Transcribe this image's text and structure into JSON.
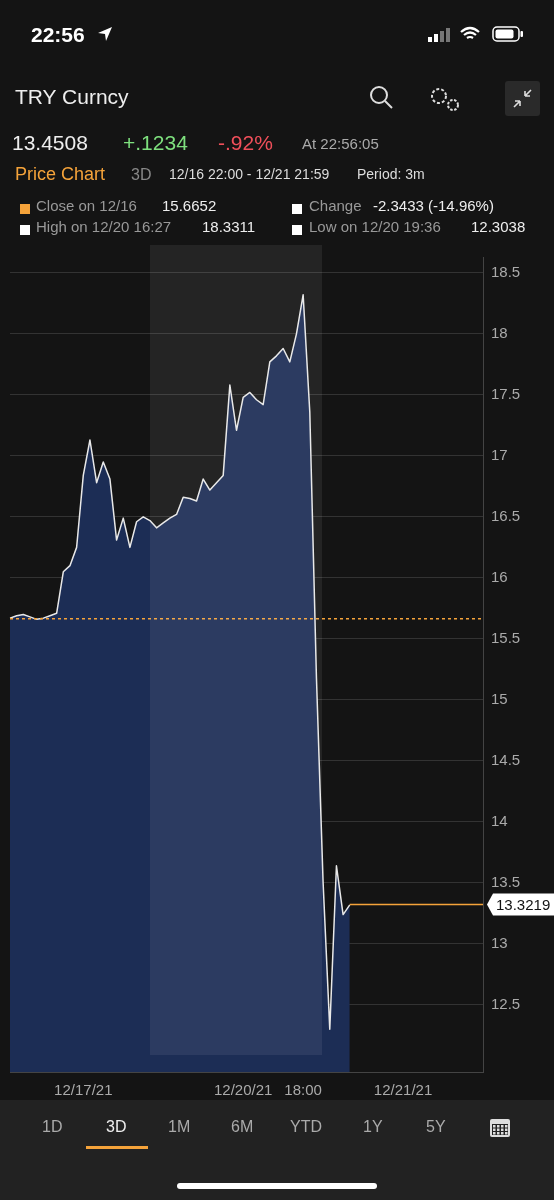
{
  "chart_data": {
    "type": "area",
    "title": "TRY Curncy",
    "annotations": [
      "22:56",
      "13.4508",
      "+.1234",
      "-.92%",
      "At 22:56:05",
      "Price Chart",
      "3D",
      "12/16 22:00 - 12/21 21:59",
      "Period: 3m",
      "Close on 12/16",
      "15.6652",
      "Change",
      "-2.3433 (-14.96%)",
      "High on 12/20 16:27",
      "18.3311",
      "Low on 12/20 19:36",
      "12.3038",
      "1D",
      "3D",
      "1M",
      "6M",
      "YTD",
      "1Y",
      "5Y"
    ],
    "categories": [
      null,
      null,
      null,
      null,
      null,
      null,
      null,
      null,
      null,
      null,
      null,
      "12/17/21",
      null,
      null,
      null,
      null,
      null,
      null,
      null,
      null,
      null,
      null,
      null,
      null,
      null,
      null,
      null,
      null,
      null,
      null,
      null,
      null,
      null,
      null,
      null,
      "12/20/21",
      null,
      null,
      null,
      null,
      null,
      null,
      null,
      null,
      "18:00",
      null,
      null,
      null,
      null,
      null,
      null,
      null,
      null,
      null,
      null,
      null,
      null,
      null,
      null,
      "12/21/21",
      null,
      null,
      null,
      null,
      null,
      null,
      null,
      null,
      null,
      null,
      null,
      null
    ],
    "series": [
      {
        "color": "#1c2d55",
        "values": [
          15.67,
          15.69,
          15.7,
          15.68,
          15.66,
          15.67,
          15.69,
          15.71,
          16.05,
          16.1,
          16.25,
          16.84,
          17.13,
          16.78,
          16.95,
          16.81,
          16.31,
          16.49,
          16.25,
          16.46,
          16.5,
          16.47,
          16.41,
          16.45,
          16.49,
          16.52,
          16.66,
          16.65,
          16.63,
          16.81,
          16.72,
          16.78,
          16.84,
          17.58,
          17.21,
          17.48,
          17.52,
          17.46,
          17.42,
          17.77,
          17.82,
          17.88,
          17.77,
          18.0,
          18.32,
          17.36,
          15.18,
          13.5,
          12.3,
          13.64,
          13.24,
          13.32,
          null,
          null,
          null,
          null,
          null,
          null,
          null,
          null,
          null,
          null,
          null,
          null,
          null,
          null,
          null,
          null,
          null,
          null,
          null,
          null
        ]
      }
    ],
    "ylim": [
      11.95,
      18.63
    ],
    "yticks": [
      12.5,
      13.0,
      13.5,
      14.0,
      14.5,
      15.0,
      15.5,
      16.0,
      16.5,
      17.0,
      17.5,
      18.0,
      18.5
    ],
    "grid": "y",
    "legend": false,
    "marker": "none",
    "line_style": "solid",
    "ref_lines": [
      {
        "axis": "y",
        "value": 15.6652,
        "color": "#f5a33a",
        "line_style": "dotted"
      },
      {
        "axis": "y",
        "value": 13.3219,
        "label": "13.3219",
        "color": "#f5a33a",
        "line_style": "solid"
      }
    ]
  }
}
